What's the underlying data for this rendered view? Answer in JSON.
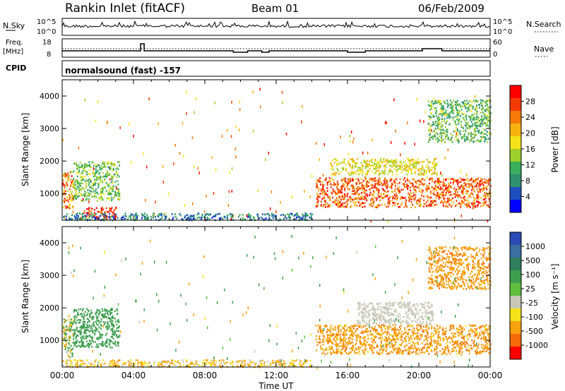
{
  "header": {
    "station": "Rankin Inlet (fitACF)",
    "beam": "Beam 01",
    "date": "06/Feb/2009"
  },
  "status": {
    "nsky_label": "N.Sky",
    "nsky_top_tick": "10^5",
    "nsky_bottom_tick": "10^0",
    "nsearch_label": "N.Search",
    "nsearch_top_tick": "10^5",
    "nsearch_bottom_tick": "10^0",
    "freq_label_1": "Freq.",
    "freq_label_2": "[MHz]",
    "freq_ticks": [
      "18",
      "8"
    ],
    "nave_label": "Nave",
    "nave_ticks": [
      "60",
      "0"
    ],
    "cpid_label": "CPID",
    "cpid_text": "normalsound (fast) -157"
  },
  "colors": {
    "power_scale": [
      "#0000ff",
      "#1f4fbf",
      "#2f8f6f",
      "#3aae5a",
      "#9ecf2a",
      "#f5e21a",
      "#f7b10f",
      "#f57a0a",
      "#f23a05",
      "#ff0000"
    ],
    "velocity_scale": [
      "#2a4ab4",
      "#3a6fa0",
      "#2f7f5f",
      "#3e9e4e",
      "#5fbe3e",
      "#c8c8b8",
      "#f5e21a",
      "#f7a10f",
      "#f56a0a",
      "#ff0000"
    ]
  },
  "chart_data": [
    {
      "type": "heatmap",
      "name": "power-panel",
      "ylabel": "Slant Range [km]",
      "ylim": [
        180,
        4500
      ],
      "yticks": [
        "1000",
        "2000",
        "3000",
        "4000"
      ],
      "xlim_hours": [
        0,
        24
      ],
      "colorbar": {
        "label": "Power [dB]",
        "ticks": [
          "4",
          "8",
          "12",
          "16",
          "20",
          "24",
          "28"
        ],
        "range": [
          0,
          30
        ]
      },
      "regions": [
        {
          "t0": 0.0,
          "t1": 0.6,
          "r0": 500,
          "r1": 1700,
          "value_range": [
            14,
            30
          ]
        },
        {
          "t0": 0.6,
          "t1": 3.2,
          "r0": 800,
          "r1": 2000,
          "value_range": [
            8,
            16
          ]
        },
        {
          "t0": 1.2,
          "t1": 3.0,
          "r0": 220,
          "r1": 600,
          "value_range": [
            22,
            30
          ]
        },
        {
          "t0": 0.0,
          "t1": 14.0,
          "r0": 200,
          "r1": 420,
          "value_range": [
            2,
            12
          ]
        },
        {
          "t0": 14.2,
          "t1": 24.0,
          "r0": 600,
          "r1": 1500,
          "value_range": [
            18,
            30
          ]
        },
        {
          "t0": 15.0,
          "t1": 21.0,
          "r0": 1600,
          "r1": 2100,
          "value_range": [
            12,
            20
          ]
        },
        {
          "t0": 20.5,
          "t1": 24.0,
          "r0": 2600,
          "r1": 3900,
          "value_range": [
            6,
            16
          ]
        }
      ]
    },
    {
      "type": "heatmap",
      "name": "velocity-panel",
      "ylabel": "Slant Range [km]",
      "ylim": [
        180,
        4500
      ],
      "yticks": [
        "1000",
        "2000",
        "3000",
        "4000"
      ],
      "xlim_hours": [
        0,
        24
      ],
      "xticks": [
        "00:00",
        "04:00",
        "08:00",
        "12:00",
        "16:00",
        "20:00",
        "00:00"
      ],
      "xlabel": "Time UT",
      "colorbar": {
        "label": "Velocity [m s⁻¹]",
        "ticks": [
          "1000",
          "500",
          "100",
          "25",
          "-25",
          "-100",
          "-500",
          "-1000"
        ]
      },
      "regions": [
        {
          "t0": 0.0,
          "t1": 0.6,
          "r0": 500,
          "r1": 1700,
          "value_range": [
            -300,
            400
          ]
        },
        {
          "t0": 0.6,
          "t1": 3.2,
          "r0": 800,
          "r1": 2000,
          "value_range": [
            100,
            500
          ]
        },
        {
          "t0": 0.0,
          "t1": 14.0,
          "r0": 200,
          "r1": 420,
          "value_range": [
            -200,
            0
          ]
        },
        {
          "t0": 14.2,
          "t1": 24.0,
          "r0": 600,
          "r1": 1500,
          "value_range": [
            -600,
            -50
          ]
        },
        {
          "t0": 16.5,
          "t1": 20.8,
          "r0": 1500,
          "r1": 2200,
          "value_range": [
            -25,
            25
          ]
        },
        {
          "t0": 20.5,
          "t1": 24.0,
          "r0": 2600,
          "r1": 3900,
          "value_range": [
            -600,
            -100
          ]
        }
      ]
    }
  ]
}
